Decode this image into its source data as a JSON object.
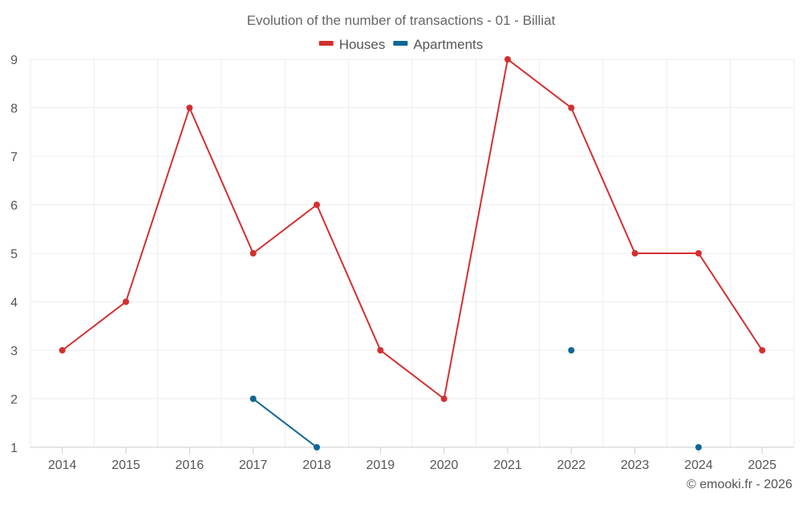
{
  "chart_data": {
    "type": "line",
    "title": "Evolution of the number of transactions - 01 - Billiat",
    "categories": [
      "2014",
      "2015",
      "2016",
      "2017",
      "2018",
      "2019",
      "2020",
      "2021",
      "2022",
      "2023",
      "2024",
      "2025"
    ],
    "series": [
      {
        "name": "Houses",
        "color": "#d32f2f",
        "values": [
          3,
          4,
          8,
          5,
          6,
          3,
          2,
          9,
          8,
          5,
          5,
          3
        ]
      },
      {
        "name": "Apartments",
        "color": "#0d6796",
        "values": [
          null,
          null,
          null,
          2,
          1,
          null,
          null,
          null,
          3,
          null,
          1,
          null
        ]
      }
    ],
    "y_ticks": [
      "1",
      "2",
      "3",
      "4",
      "5",
      "6",
      "7",
      "8",
      "9"
    ],
    "ylim": [
      1,
      9
    ],
    "xlabel": "",
    "ylabel": "",
    "grid": true,
    "legend_position": "top-center"
  },
  "footer": {
    "credit": "© emooki.fr - 2026"
  }
}
